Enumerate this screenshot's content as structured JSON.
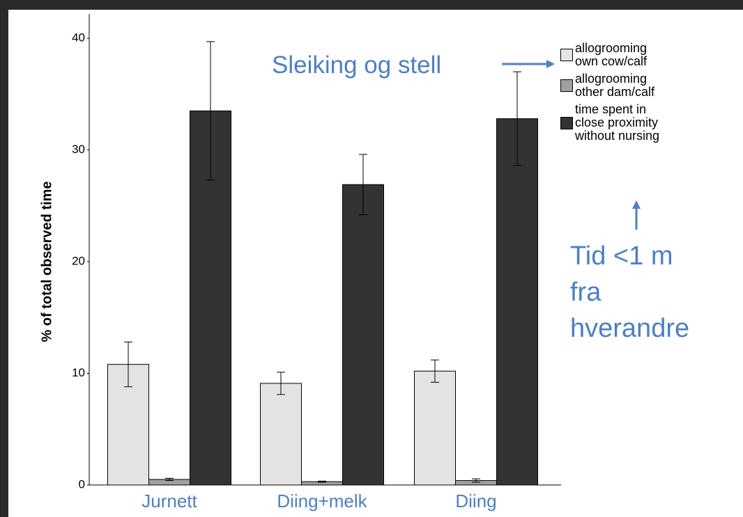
{
  "chart_data": {
    "type": "bar",
    "y_label": "% of total observed time",
    "categories": [
      "Jurnett",
      "Diing+melk",
      "Diing"
    ],
    "series": [
      {
        "name": "allogrooming own cow/calf",
        "color": "#e3e3e3",
        "values": [
          10.8,
          9.1,
          10.2
        ],
        "errors": [
          2.0,
          1.0,
          1.0
        ]
      },
      {
        "name": "allogrooming other dam/calf",
        "color": "#a0a0a0",
        "values": [
          0.5,
          0.3,
          0.4
        ],
        "errors": [
          0.1,
          0.05,
          0.15
        ]
      },
      {
        "name": "time spent in close proximity without nursing",
        "color": "#333333",
        "values": [
          33.5,
          26.9,
          32.8
        ],
        "errors": [
          6.2,
          2.7,
          4.2
        ]
      }
    ],
    "ylim": [
      0,
      40
    ],
    "yticks": [
      0,
      10,
      20,
      30,
      40
    ],
    "annotations": [
      "Sleiking og stell",
      "Tid <1 m fra hverandre"
    ]
  }
}
